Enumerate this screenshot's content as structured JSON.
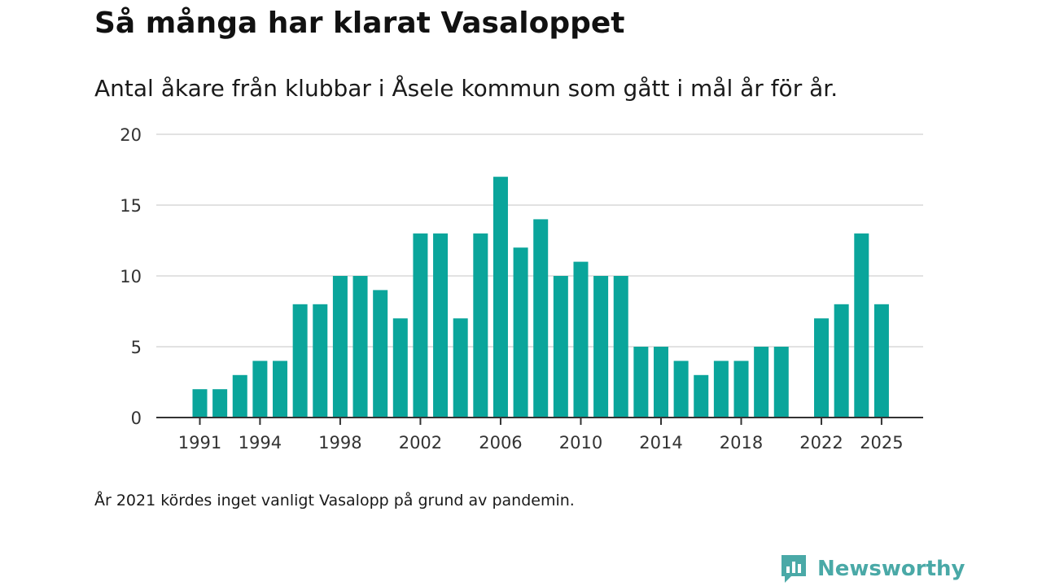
{
  "header": {
    "title": "Så många har klarat Vasaloppet",
    "subtitle": "Antal åkare från klubbar i Åsele kommun som gått i mål år för år."
  },
  "footer": {
    "note": "År 2021 kördes inget vanligt Vasalopp på grund av pandemin.",
    "brand": "Newsworthy"
  },
  "colors": {
    "bar": "#0aa59b",
    "grid": "#d9d9d9",
    "axis": "#333333",
    "brand": "#4aa9a7"
  },
  "chart_data": {
    "type": "bar",
    "title": "Så många har klarat Vasaloppet",
    "xlabel": "",
    "ylabel": "",
    "ylim": [
      0,
      20
    ],
    "yticks": [
      0,
      5,
      10,
      15,
      20
    ],
    "xticks": [
      1991,
      1994,
      1998,
      2002,
      2006,
      2010,
      2014,
      2018,
      2022,
      2025
    ],
    "categories": [
      1991,
      1992,
      1993,
      1994,
      1995,
      1996,
      1997,
      1998,
      1999,
      2000,
      2001,
      2002,
      2003,
      2004,
      2005,
      2006,
      2007,
      2008,
      2009,
      2010,
      2011,
      2012,
      2013,
      2014,
      2015,
      2016,
      2017,
      2018,
      2019,
      2020,
      2021,
      2022,
      2023,
      2024,
      2025
    ],
    "values": [
      2,
      2,
      3,
      4,
      4,
      8,
      8,
      10,
      10,
      9,
      7,
      13,
      13,
      7,
      13,
      17,
      12,
      14,
      10,
      11,
      10,
      10,
      5,
      5,
      4,
      3,
      4,
      4,
      5,
      5,
      null,
      7,
      8,
      13,
      8
    ],
    "grid": true
  }
}
